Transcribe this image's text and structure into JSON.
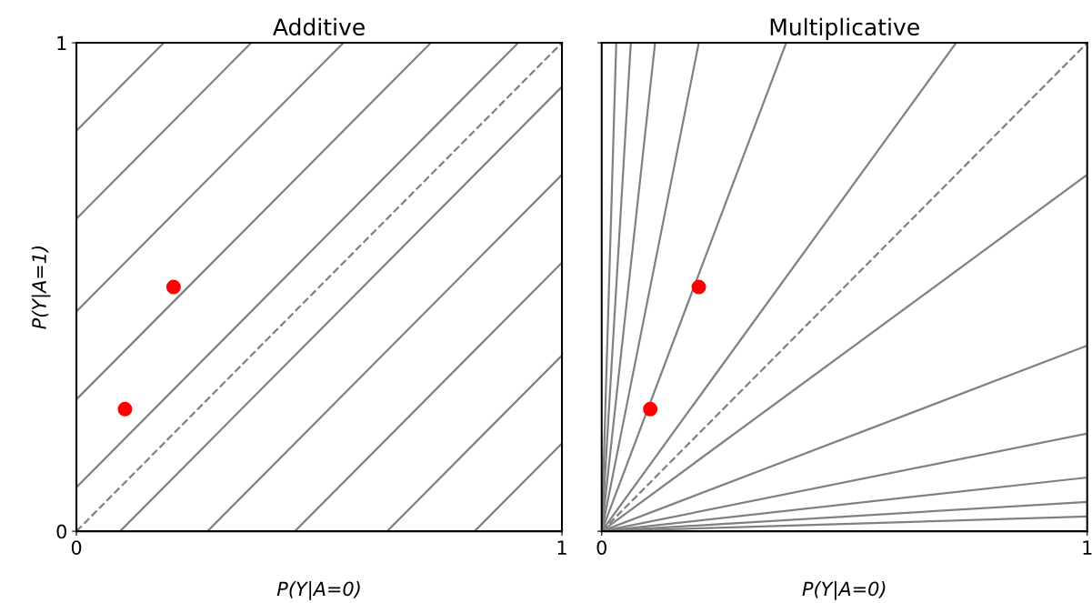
{
  "chart_data": [
    {
      "type": "line",
      "title": "Additive",
      "xlabel": "P(Y|A=0)",
      "ylabel": "P(Y|A=1)",
      "xlim": [
        0,
        1
      ],
      "ylim": [
        0,
        1
      ],
      "xticks": [
        0,
        1
      ],
      "yticks": [
        0,
        1
      ],
      "series": [
        {
          "color": "#808080",
          "x": [
            0,
            0.18
          ],
          "values": [
            0.82,
            1
          ]
        },
        {
          "color": "#808080",
          "x": [
            0,
            0.36
          ],
          "values": [
            0.64,
            1
          ]
        },
        {
          "color": "#808080",
          "x": [
            0,
            0.55
          ],
          "values": [
            0.45,
            1
          ]
        },
        {
          "color": "#808080",
          "x": [
            0,
            0.73
          ],
          "values": [
            0.27,
            1
          ]
        },
        {
          "color": "#808080",
          "x": [
            0,
            0.91
          ],
          "values": [
            0.09,
            1
          ]
        },
        {
          "color": "#808080",
          "x": [
            0,
            1
          ],
          "values": [
            0,
            1
          ],
          "line_style": "dashed"
        },
        {
          "color": "#808080",
          "x": [
            0.09,
            1
          ],
          "values": [
            0,
            0.91
          ]
        },
        {
          "color": "#808080",
          "x": [
            0.27,
            1
          ],
          "values": [
            0,
            0.73
          ]
        },
        {
          "color": "#808080",
          "x": [
            0.45,
            1
          ],
          "values": [
            0,
            0.55
          ]
        },
        {
          "color": "#808080",
          "x": [
            0.64,
            1
          ],
          "values": [
            0,
            0.36
          ]
        },
        {
          "color": "#808080",
          "x": [
            0.82,
            1
          ],
          "values": [
            0,
            0.18
          ]
        },
        {
          "type": "scatter",
          "color": "#ff0000",
          "marker": "circle",
          "x": [
            0.1,
            0.2
          ],
          "values": [
            0.25,
            0.5
          ]
        }
      ]
    },
    {
      "type": "line",
      "title": "Multiplicative",
      "xlabel": "P(Y|A=0)",
      "xlim": [
        0,
        1
      ],
      "ylim": [
        0,
        1
      ],
      "xticks": [
        0,
        1
      ],
      "yticks": [
        0,
        1
      ],
      "tick_labels": "x",
      "series": [
        {
          "color": "#808080",
          "x": [
            0,
            0.03
          ],
          "values": [
            0,
            1
          ]
        },
        {
          "color": "#808080",
          "x": [
            0,
            0.06
          ],
          "values": [
            0,
            1
          ]
        },
        {
          "color": "#808080",
          "x": [
            0,
            0.11
          ],
          "values": [
            0,
            1
          ]
        },
        {
          "color": "#808080",
          "x": [
            0,
            0.2
          ],
          "values": [
            0,
            1
          ]
        },
        {
          "color": "#808080",
          "x": [
            0,
            0.38
          ],
          "values": [
            0,
            1
          ]
        },
        {
          "color": "#808080",
          "x": [
            0,
            0.73
          ],
          "values": [
            0,
            1
          ]
        },
        {
          "color": "#808080",
          "x": [
            0,
            1
          ],
          "values": [
            0,
            1
          ],
          "line_style": "dashed"
        },
        {
          "color": "#808080",
          "x": [
            0,
            1
          ],
          "values": [
            0,
            0.73
          ]
        },
        {
          "color": "#808080",
          "x": [
            0,
            1
          ],
          "values": [
            0,
            0.38
          ]
        },
        {
          "color": "#808080",
          "x": [
            0,
            1
          ],
          "values": [
            0,
            0.2
          ]
        },
        {
          "color": "#808080",
          "x": [
            0,
            1
          ],
          "values": [
            0,
            0.11
          ]
        },
        {
          "color": "#808080",
          "x": [
            0,
            1
          ],
          "values": [
            0,
            0.06
          ]
        },
        {
          "color": "#808080",
          "x": [
            0,
            1
          ],
          "values": [
            0,
            0.03
          ]
        },
        {
          "type": "scatter",
          "color": "#ff0000",
          "marker": "circle",
          "x": [
            0.1,
            0.2
          ],
          "values": [
            0.25,
            0.5
          ]
        }
      ]
    }
  ]
}
